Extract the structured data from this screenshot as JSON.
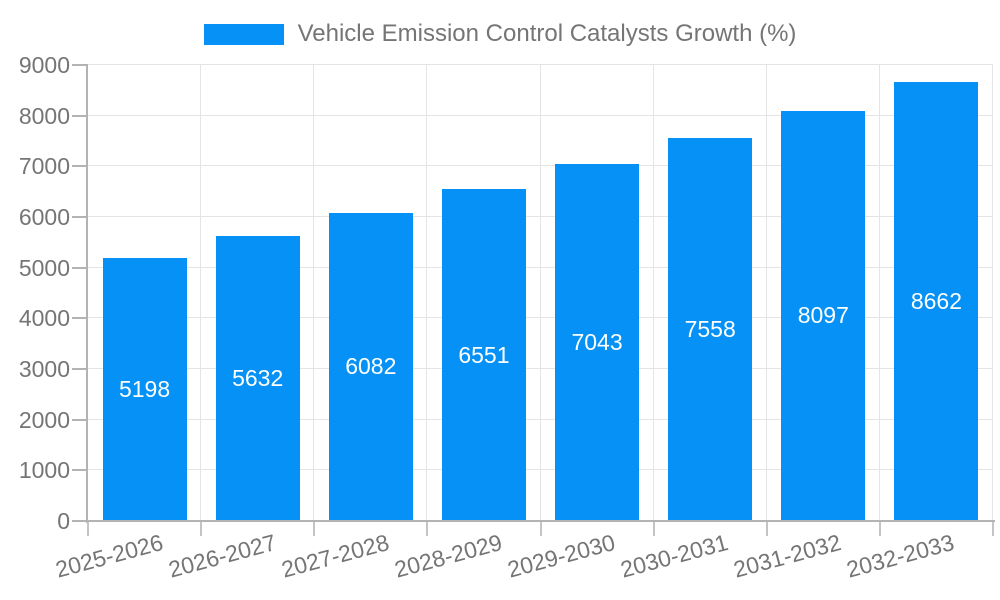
{
  "chart_data": {
    "type": "bar",
    "title": "Vehicle Emission Control Catalysts Growth (%)",
    "categories": [
      "2025-2026",
      "2026-2027",
      "2027-2028",
      "2028-2029",
      "2029-2030",
      "2030-2031",
      "2031-2032",
      "2032-2033"
    ],
    "values": [
      5198,
      5632,
      6082,
      6551,
      7043,
      7558,
      8097,
      8662
    ],
    "yticks": [
      0,
      1000,
      2000,
      3000,
      4000,
      5000,
      6000,
      7000,
      8000,
      9000
    ],
    "ylim": [
      0,
      9000
    ],
    "xlabel": "",
    "ylabel": "",
    "grid": true,
    "legend_position": "top",
    "bar_color": "#0591F5",
    "bar_label_color": "#ffffff",
    "axis_color": "#b3b3b3",
    "grid_color": "#e4e4e4",
    "text_color": "#757575"
  }
}
